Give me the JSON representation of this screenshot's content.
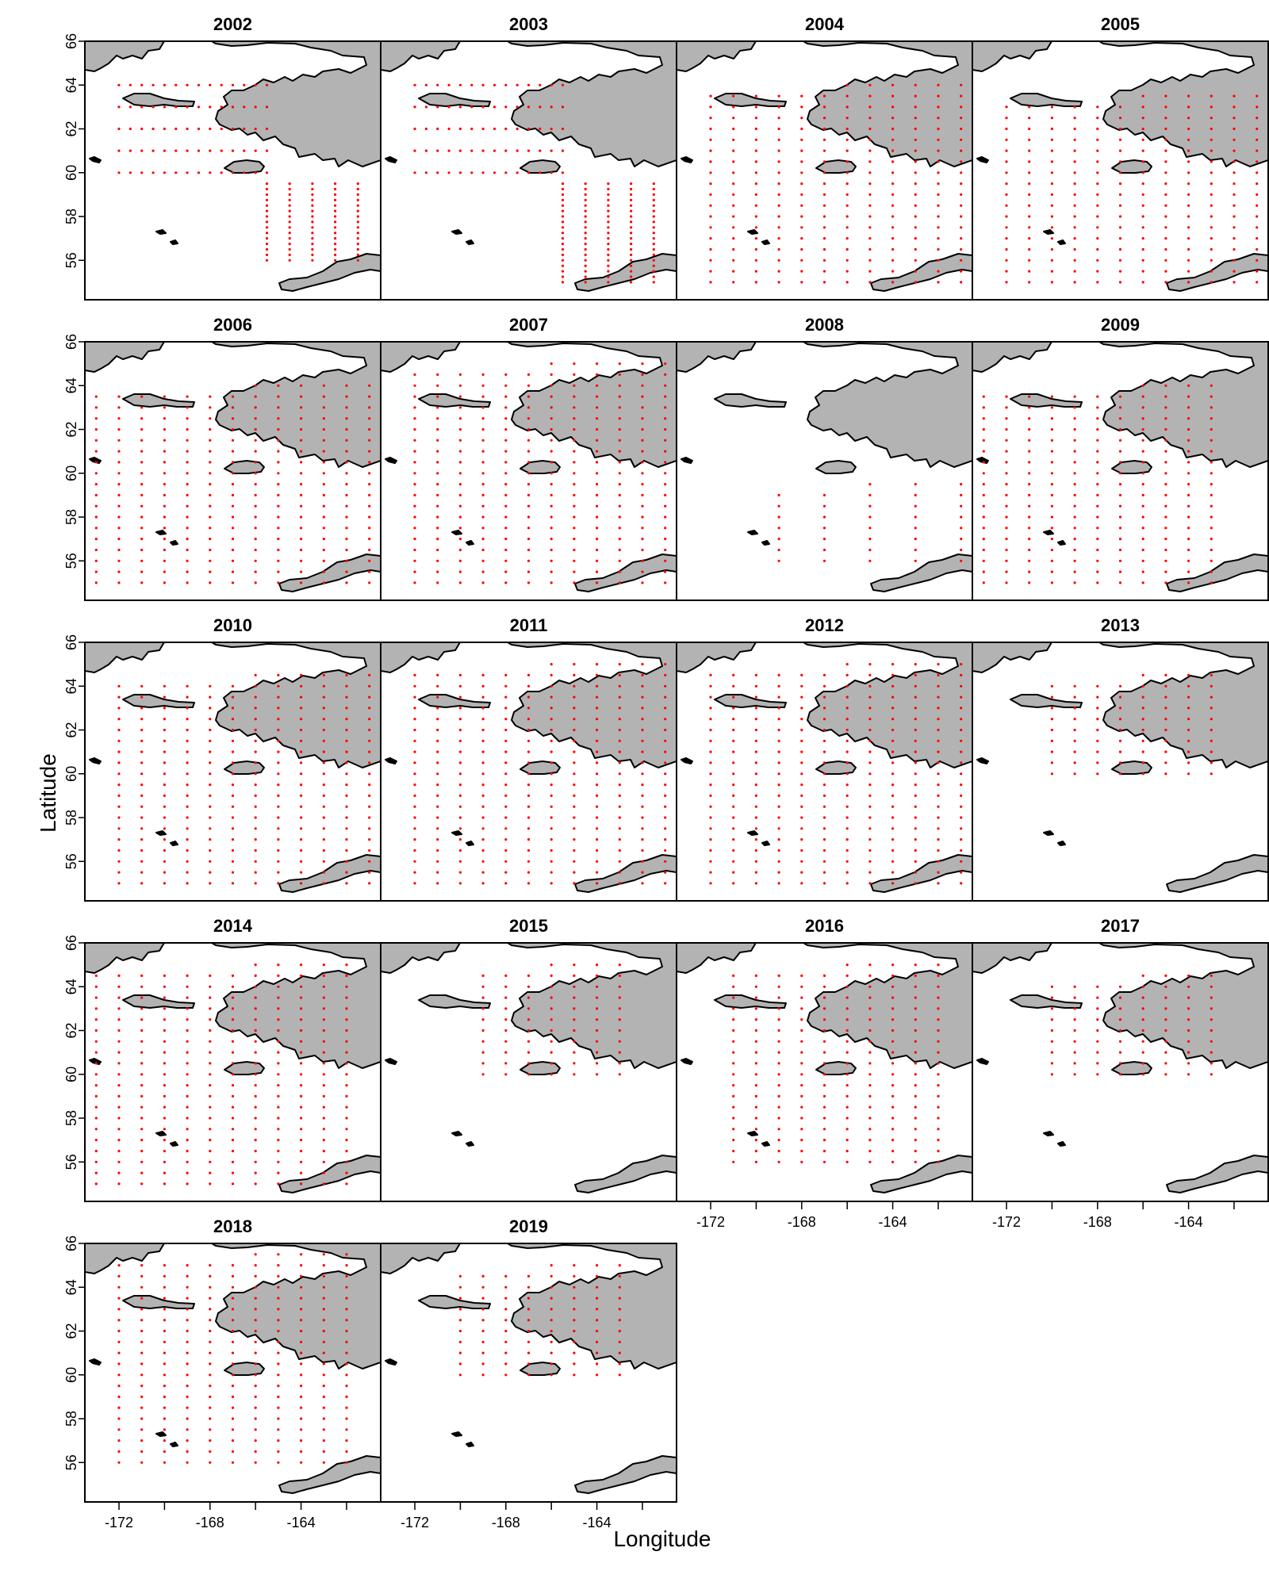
{
  "figure": {
    "xlabel": "Longitude",
    "ylabel": "Latitude",
    "x_ticks": [
      "-172",
      "-168",
      "-164"
    ],
    "y_ticks": [
      "56",
      "58",
      "60",
      "62",
      "64",
      "66"
    ],
    "colors": {
      "land": "#b3b3b3",
      "coast": "#000000",
      "station": "#ff0000",
      "frame": "#000000"
    }
  },
  "chart_data": {
    "type": "scatter",
    "xlabel": "Longitude",
    "ylabel": "Latitude",
    "xlim": [
      -173.5,
      -160.5
    ],
    "ylim": [
      54.2,
      66
    ],
    "x_ticks": [
      -172,
      -168,
      -164
    ],
    "y_ticks": [
      56,
      58,
      60,
      62,
      64,
      66
    ],
    "panels": [
      {
        "title": "2002",
        "layout": "grid",
        "lons": [
          -170.5,
          -169.5,
          -168.5,
          -167.5,
          -166.5,
          -165.5,
          -164.5,
          -163.5,
          -162.5,
          -161.5
        ],
        "lat_min": 56.0,
        "lat_max": 64.0
      },
      {
        "title": "2003",
        "layout": "grid",
        "lons": [
          -171.5,
          -170.5,
          -169.5,
          -168.5,
          -167.5,
          -166.5,
          -165.5,
          -164.5,
          -163.5,
          -162.5,
          -161.5
        ],
        "lat_min": 55.0,
        "lat_max": 64.0
      },
      {
        "title": "2004",
        "layout": "cols",
        "lons": [
          -172.0,
          -171.0,
          -170.0,
          -169.0,
          -168.0,
          -167.0,
          -166.0,
          -165.0,
          -164.0,
          -163.0,
          -162.0,
          -161.0
        ],
        "lat_min": 55.0,
        "lat_max": 64.0
      },
      {
        "title": "2005",
        "layout": "cols",
        "lons": [
          -172.0,
          -171.0,
          -170.0,
          -169.0,
          -168.0,
          -167.0,
          -166.0,
          -165.0,
          -164.0,
          -163.0,
          -162.0,
          -161.0
        ],
        "lat_min": 55.0,
        "lat_max": 63.5
      },
      {
        "title": "2006",
        "layout": "cols",
        "lons": [
          -173.0,
          -172.0,
          -171.0,
          -170.0,
          -169.0,
          -168.0,
          -167.0,
          -166.0,
          -165.0,
          -164.0,
          -163.0,
          -162.0,
          -161.0
        ],
        "lat_min": 55.0,
        "lat_max": 64.0
      },
      {
        "title": "2007",
        "layout": "cols",
        "lons": [
          -172.0,
          -171.0,
          -170.0,
          -169.0,
          -168.0,
          -167.0,
          -166.0,
          -165.0,
          -164.0,
          -163.0,
          -162.0,
          -161.0
        ],
        "lat_min": 55.0,
        "lat_max": 65.0
      },
      {
        "title": "2008",
        "layout": "cols",
        "lons": [
          -169.0,
          -167.0,
          -165.0,
          -163.0,
          -161.0
        ],
        "lat_min": 56.0,
        "lat_max": 59.5
      },
      {
        "title": "2009",
        "layout": "cols",
        "lons": [
          -173.0,
          -172.0,
          -171.0,
          -170.0,
          -169.0,
          -168.0,
          -167.0,
          -166.0,
          -165.0,
          -164.0,
          -163.0
        ],
        "lat_min": 55.0,
        "lat_max": 64.0
      },
      {
        "title": "2010",
        "layout": "cols",
        "lons": [
          -172.0,
          -171.0,
          -170.0,
          -169.0,
          -168.0,
          -167.0,
          -166.0,
          -165.0,
          -164.0,
          -163.0,
          -162.0,
          -161.0
        ],
        "lat_min": 55.0,
        "lat_max": 64.5
      },
      {
        "title": "2011",
        "layout": "cols",
        "lons": [
          -172.0,
          -171.0,
          -170.0,
          -169.0,
          -168.0,
          -167.0,
          -166.0,
          -165.0,
          -164.0,
          -163.0,
          -162.0,
          -161.0
        ],
        "lat_min": 55.0,
        "lat_max": 65.0
      },
      {
        "title": "2012",
        "layout": "cols",
        "lons": [
          -172.0,
          -171.0,
          -170.0,
          -169.0,
          -168.0,
          -167.0,
          -166.0,
          -165.0,
          -164.0,
          -163.0,
          -162.0,
          -161.0
        ],
        "lat_min": 55.0,
        "lat_max": 65.0
      },
      {
        "title": "2013",
        "layout": "cols",
        "lons": [
          -170.0,
          -169.0,
          -168.0,
          -167.0,
          -166.0,
          -165.0,
          -164.0,
          -163.0
        ],
        "lat_min": 60.0,
        "lat_max": 64.5
      },
      {
        "title": "2014",
        "layout": "cols",
        "lons": [
          -173.0,
          -172.0,
          -171.0,
          -170.0,
          -169.0,
          -168.0,
          -167.0,
          -166.0,
          -165.0,
          -164.0,
          -163.0,
          -162.0
        ],
        "lat_min": 55.0,
        "lat_max": 65.0
      },
      {
        "title": "2015",
        "layout": "cols",
        "lons": [
          -169.0,
          -168.0,
          -167.0,
          -166.0,
          -165.0,
          -164.0,
          -163.0
        ],
        "lat_min": 60.0,
        "lat_max": 65.0
      },
      {
        "title": "2016",
        "layout": "cols",
        "lons": [
          -171.0,
          -170.0,
          -169.0,
          -168.0,
          -167.0,
          -166.0,
          -165.0,
          -164.0,
          -163.0,
          -162.0
        ],
        "lat_min": 56.0,
        "lat_max": 65.0
      },
      {
        "title": "2017",
        "layout": "cols",
        "lons": [
          -170.0,
          -169.0,
          -168.0,
          -167.0,
          -166.0,
          -165.0,
          -164.0,
          -163.0
        ],
        "lat_min": 60.0,
        "lat_max": 64.5
      },
      {
        "title": "2018",
        "layout": "cols",
        "lons": [
          -172.0,
          -171.0,
          -170.0,
          -169.0,
          -168.0,
          -167.0,
          -166.0,
          -165.0,
          -164.0,
          -163.0,
          -162.0
        ],
        "lat_min": 56.0,
        "lat_max": 65.5
      },
      {
        "title": "2019",
        "layout": "cols",
        "lons": [
          -170.0,
          -169.0,
          -168.0,
          -167.0,
          -166.0,
          -165.0,
          -164.0,
          -163.0
        ],
        "lat_min": 60.0,
        "lat_max": 65.0
      }
    ]
  }
}
